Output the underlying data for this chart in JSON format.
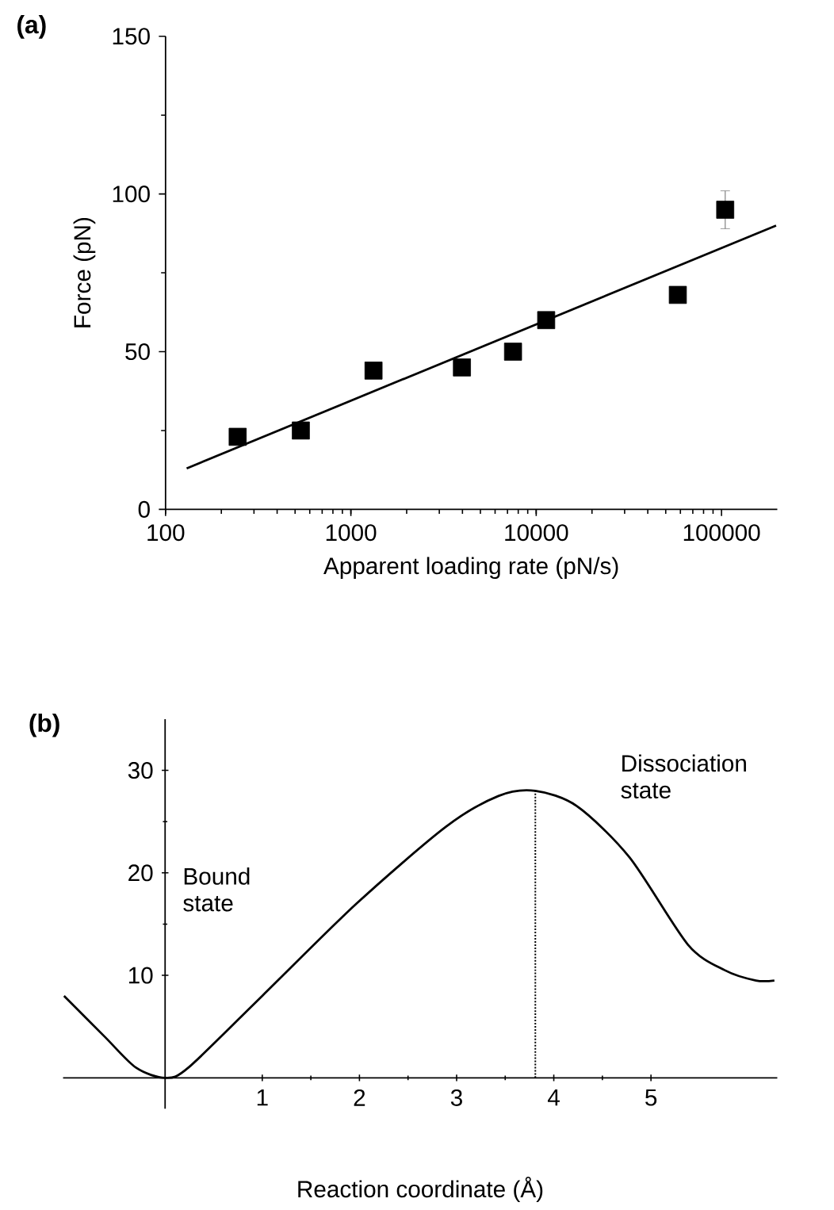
{
  "chart_data": [
    {
      "type": "scatter",
      "title": "(a)",
      "xlabel": "Apparent loading rate (pN/s)",
      "ylabel": "Force (pN)",
      "log": "x",
      "marker": "square",
      "xlim": [
        100,
        200000
      ],
      "ylim": [
        0,
        150
      ],
      "xticks": [
        100,
        1000,
        10000,
        100000
      ],
      "yticks": [
        0,
        50,
        100,
        150
      ],
      "series": [
        {
          "type": "scatter",
          "color": "#000000",
          "x": [
            245,
            537,
            1325,
            3975,
            7500,
            11320,
            58100,
            104700
          ],
          "values": [
            23,
            25,
            44,
            45,
            50,
            60,
            68,
            95
          ],
          "errors": [
            null,
            null,
            null,
            null,
            null,
            null,
            null,
            6
          ]
        },
        {
          "type": "line",
          "marker": "none",
          "color": "#000000",
          "x": [
            130,
            197000
          ],
          "values": [
            13,
            90
          ]
        }
      ]
    },
    {
      "type": "line",
      "title": "(b)",
      "xlabel": "Reaction coordinate (Å)",
      "xlim": [
        -1.05,
        6.3
      ],
      "ylim": [
        -3,
        35
      ],
      "xticks": [
        1,
        2,
        3,
        4,
        5
      ],
      "yticks": [
        10,
        20,
        30
      ],
      "series": [
        {
          "type": "line",
          "color": "#000000",
          "x": [
            -1.04,
            -0.62,
            -0.3,
            0,
            0.24,
            1.0,
            1.97,
            2.89,
            3.43,
            3.81,
            4.24,
            4.78,
            5.38,
            5.76,
            6.08,
            6.27
          ],
          "values": [
            8,
            4,
            1,
            0,
            1,
            8,
            17,
            24.5,
            27.5,
            28,
            26.5,
            21.5,
            13,
            10.5,
            9.5,
            9.5
          ]
        }
      ],
      "ref_lines": [
        {
          "axis": "x",
          "value": 3.81,
          "line_style": "dotted",
          "color": "#000000"
        }
      ],
      "annotations": [
        "Bound state",
        "Dissociation state"
      ]
    }
  ]
}
